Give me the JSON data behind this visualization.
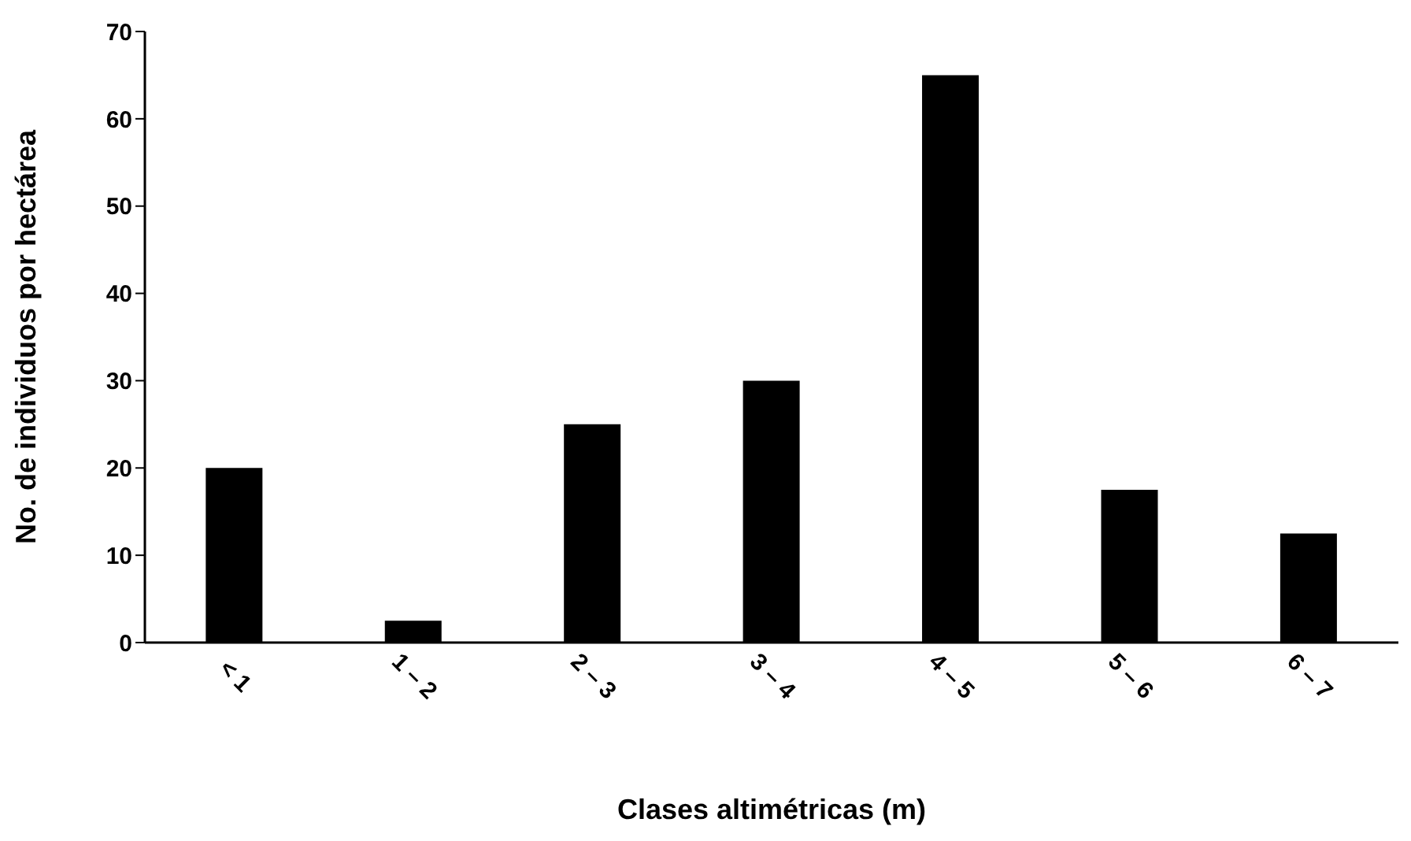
{
  "chart_data": {
    "type": "bar",
    "xlabel": "Clases altimétricas (m)",
    "ylabel": "No. de individuos por hectárea",
    "categories": [
      "< 1",
      "1 – 2",
      "2 – 3",
      "3 – 4",
      "4 – 5",
      "5 – 6",
      "6 – 7"
    ],
    "values": [
      20,
      2.5,
      25,
      30,
      65,
      17.5,
      12.5
    ],
    "color": "#000000",
    "ylim": [
      0,
      70
    ],
    "yticks": [
      0,
      10,
      20,
      30,
      40,
      50,
      60,
      70
    ],
    "grid": false,
    "legend": false
  }
}
